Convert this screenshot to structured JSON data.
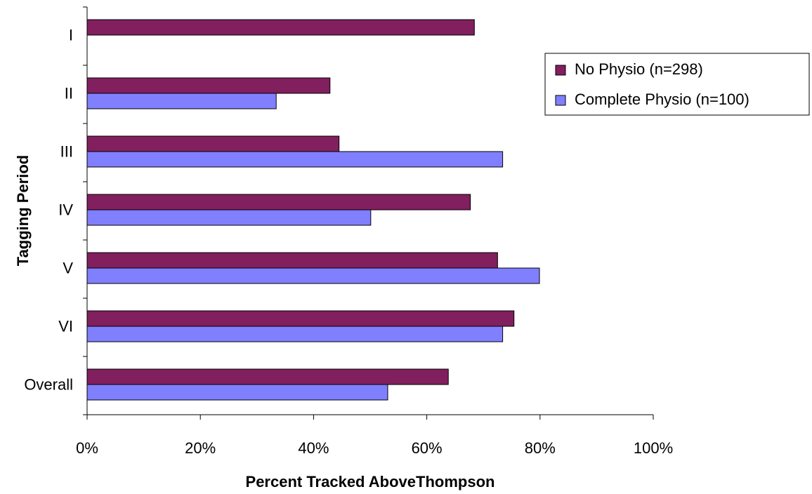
{
  "chart_data": {
    "type": "bar",
    "orientation": "horizontal",
    "x_label": "Percent Tracked AboveThompson",
    "y_label": "Tagging Period",
    "categories": [
      "I",
      "II",
      "III",
      "IV",
      "V",
      "VI",
      "Overall"
    ],
    "series": [
      {
        "name": "No Physio (n=298)",
        "color": "#821f5e",
        "values": [
          68.4,
          42.9,
          44.5,
          67.7,
          72.5,
          75.4,
          63.8
        ]
      },
      {
        "name": "Complete Physio (n=100)",
        "color": "#8080ff",
        "values": [
          null,
          33.4,
          73.4,
          50.1,
          79.9,
          73.4,
          53.1
        ]
      }
    ],
    "xlim": [
      0,
      100
    ],
    "xticks": [
      {
        "value": 0,
        "label": "0%"
      },
      {
        "value": 20,
        "label": "20%"
      },
      {
        "value": 40,
        "label": "40%"
      },
      {
        "value": 60,
        "label": "60%"
      },
      {
        "value": 80,
        "label": "80%"
      },
      {
        "value": 100,
        "label": "100%"
      }
    ],
    "legend": "right"
  }
}
